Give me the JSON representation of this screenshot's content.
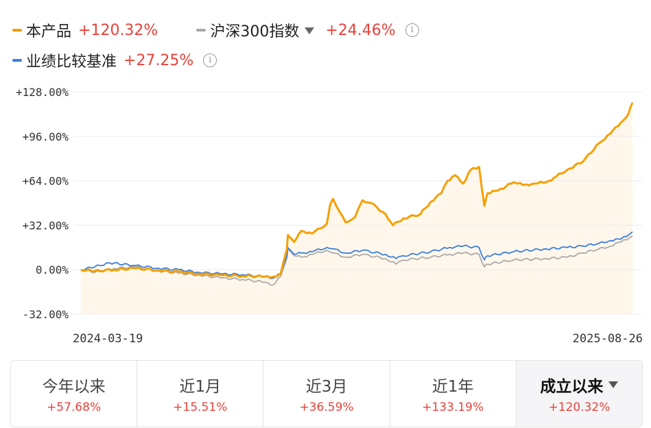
{
  "legend": [
    {
      "name": "本产品",
      "value": "+120.32%",
      "color": "#f59f00"
    },
    {
      "name": "沪深300指数",
      "value": "+24.46%",
      "color": "#aaaaaa"
    },
    {
      "name": "业绩比较基准",
      "value": "+27.25%",
      "color": "#3b7ddd"
    }
  ],
  "tabs": [
    {
      "label": "今年以来",
      "value": "+57.68%"
    },
    {
      "label": "近1月",
      "value": "+15.51%"
    },
    {
      "label": "近3月",
      "value": "+36.59%"
    },
    {
      "label": "近1年",
      "value": "+133.19%"
    },
    {
      "label": "成立以来",
      "value": "+120.32%"
    }
  ],
  "info_icon": "info-circle-icon",
  "chart_data": {
    "type": "line",
    "x_range": [
      "2024-03-19",
      "2025-08-26"
    ],
    "x_tick_labels": [
      "2024-03-19",
      "2025-08-26"
    ],
    "ylim": [
      -32,
      128
    ],
    "y_ticks": [
      -32,
      0,
      32,
      64,
      96,
      128
    ],
    "y_tick_labels": [
      "-32.00%",
      "0.00%",
      "+32.00%",
      "+64.00%",
      "+96.00%",
      "+128.00%"
    ],
    "grid": true,
    "legend_position": "top",
    "series": [
      {
        "name": "本产品",
        "color": "#f59f00",
        "fill": true,
        "points": [
          [
            "2024-03-19",
            0
          ],
          [
            "2024-04-01",
            -1
          ],
          [
            "2024-04-20",
            0
          ],
          [
            "2024-05-10",
            1
          ],
          [
            "2024-06-01",
            -0.5
          ],
          [
            "2024-06-20",
            -1.5
          ],
          [
            "2024-07-10",
            -3
          ],
          [
            "2024-08-01",
            -4
          ],
          [
            "2024-08-20",
            -4.5
          ],
          [
            "2024-09-10",
            -5
          ],
          [
            "2024-09-20",
            -5
          ],
          [
            "2024-09-25",
            -3
          ],
          [
            "2024-10-01",
            15
          ],
          [
            "2024-10-02",
            25
          ],
          [
            "2024-10-08",
            20
          ],
          [
            "2024-10-15",
            28
          ],
          [
            "2024-10-25",
            26
          ],
          [
            "2024-11-08",
            33
          ],
          [
            "2024-11-11",
            46
          ],
          [
            "2024-11-14",
            51
          ],
          [
            "2024-11-20",
            42
          ],
          [
            "2024-11-26",
            34
          ],
          [
            "2024-12-05",
            38
          ],
          [
            "2024-12-12",
            50
          ],
          [
            "2024-12-20",
            48
          ],
          [
            "2025-01-03",
            40
          ],
          [
            "2025-01-10",
            32
          ],
          [
            "2025-01-20",
            37
          ],
          [
            "2025-02-05",
            40
          ],
          [
            "2025-02-15",
            49
          ],
          [
            "2025-02-25",
            55
          ],
          [
            "2025-03-03",
            64
          ],
          [
            "2025-03-10",
            68
          ],
          [
            "2025-03-18",
            62
          ],
          [
            "2025-03-25",
            72
          ],
          [
            "2025-04-02",
            74
          ],
          [
            "2025-04-07",
            46
          ],
          [
            "2025-04-10",
            55
          ],
          [
            "2025-04-20",
            57
          ],
          [
            "2025-05-05",
            63
          ],
          [
            "2025-05-14",
            61
          ],
          [
            "2025-05-25",
            62
          ],
          [
            "2025-06-05",
            63
          ],
          [
            "2025-06-12",
            66
          ],
          [
            "2025-06-25",
            72
          ],
          [
            "2025-07-10",
            78
          ],
          [
            "2025-07-25",
            91
          ],
          [
            "2025-08-05",
            98
          ],
          [
            "2025-08-15",
            106
          ],
          [
            "2025-08-22",
            112
          ],
          [
            "2025-08-26",
            120.32
          ]
        ]
      },
      {
        "name": "沪深300指数",
        "color": "#aaaaaa",
        "fill": false,
        "points": [
          [
            "2024-03-19",
            0
          ],
          [
            "2024-04-01",
            -2
          ],
          [
            "2024-04-20",
            1
          ],
          [
            "2024-05-10",
            2
          ],
          [
            "2024-06-01",
            -1
          ],
          [
            "2024-06-20",
            -2.5
          ],
          [
            "2024-07-10",
            -4
          ],
          [
            "2024-08-01",
            -6
          ],
          [
            "2024-08-20",
            -7
          ],
          [
            "2024-09-10",
            -9
          ],
          [
            "2024-09-18",
            -11
          ],
          [
            "2024-09-25",
            -5
          ],
          [
            "2024-10-01",
            8
          ],
          [
            "2024-10-02",
            15
          ],
          [
            "2024-10-08",
            10
          ],
          [
            "2024-10-15",
            9
          ],
          [
            "2024-10-25",
            11
          ],
          [
            "2024-11-08",
            14
          ],
          [
            "2024-11-14",
            12
          ],
          [
            "2024-11-26",
            9
          ],
          [
            "2024-12-12",
            11
          ],
          [
            "2025-01-03",
            8
          ],
          [
            "2025-01-13",
            4
          ],
          [
            "2025-01-20",
            7
          ],
          [
            "2025-02-15",
            9
          ],
          [
            "2025-03-05",
            11
          ],
          [
            "2025-03-18",
            12
          ],
          [
            "2025-04-02",
            11
          ],
          [
            "2025-04-07",
            2
          ],
          [
            "2025-04-10",
            4
          ],
          [
            "2025-05-05",
            7
          ],
          [
            "2025-06-05",
            8
          ],
          [
            "2025-06-25",
            9
          ],
          [
            "2025-07-10",
            12
          ],
          [
            "2025-07-25",
            15
          ],
          [
            "2025-08-05",
            17
          ],
          [
            "2025-08-15",
            20
          ],
          [
            "2025-08-26",
            24.46
          ]
        ]
      },
      {
        "name": "业绩比较基准",
        "color": "#3b7ddd",
        "fill": false,
        "points": [
          [
            "2024-03-19",
            0
          ],
          [
            "2024-04-01",
            2
          ],
          [
            "2024-04-15",
            5
          ],
          [
            "2024-05-10",
            3
          ],
          [
            "2024-06-01",
            1
          ],
          [
            "2024-06-20",
            0
          ],
          [
            "2024-07-10",
            -2
          ],
          [
            "2024-08-01",
            -3
          ],
          [
            "2024-08-20",
            -3.5
          ],
          [
            "2024-09-10",
            -5
          ],
          [
            "2024-09-18",
            -6
          ],
          [
            "2024-09-25",
            -3
          ],
          [
            "2024-10-01",
            10
          ],
          [
            "2024-10-02",
            16
          ],
          [
            "2024-10-08",
            11
          ],
          [
            "2024-10-15",
            12
          ],
          [
            "2024-10-25",
            13
          ],
          [
            "2024-11-08",
            16
          ],
          [
            "2024-11-14",
            15
          ],
          [
            "2024-11-26",
            12
          ],
          [
            "2024-12-12",
            14
          ],
          [
            "2025-01-03",
            11
          ],
          [
            "2025-01-13",
            8
          ],
          [
            "2025-01-20",
            10
          ],
          [
            "2025-02-15",
            13
          ],
          [
            "2025-03-05",
            16
          ],
          [
            "2025-03-18",
            17
          ],
          [
            "2025-04-02",
            16
          ],
          [
            "2025-04-07",
            7
          ],
          [
            "2025-04-10",
            10
          ],
          [
            "2025-05-05",
            13
          ],
          [
            "2025-06-05",
            15
          ],
          [
            "2025-06-25",
            16
          ],
          [
            "2025-07-10",
            17
          ],
          [
            "2025-07-25",
            19
          ],
          [
            "2025-08-05",
            21
          ],
          [
            "2025-08-15",
            22
          ],
          [
            "2025-08-26",
            27.25
          ]
        ]
      }
    ]
  }
}
